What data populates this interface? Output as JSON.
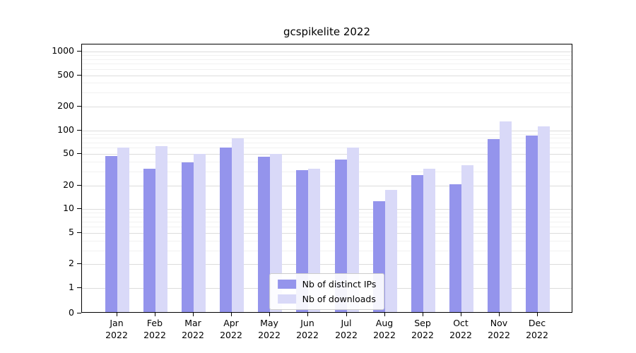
{
  "chart_data": {
    "type": "bar",
    "title": "gcspikelite 2022",
    "categories": [
      "Jan 2022",
      "Feb 2022",
      "Mar 2022",
      "Apr 2022",
      "May 2022",
      "Jun 2022",
      "Jul 2022",
      "Aug 2022",
      "Sep 2022",
      "Oct 2022",
      "Nov 2022",
      "Dec 2022"
    ],
    "series": [
      {
        "name": "Nb of distinct IPs",
        "color": "#9494ec",
        "values": [
          45,
          31,
          38,
          58,
          44,
          30,
          41,
          12,
          26,
          20,
          75,
          82
        ]
      },
      {
        "name": "Nb of downloads",
        "color": "#d9d9f8",
        "values": [
          58,
          60,
          48,
          76,
          48,
          31,
          58,
          17,
          31,
          35,
          125,
          107
        ]
      }
    ],
    "y_scale": "symlog",
    "y_ticks": [
      1000,
      500,
      200,
      100,
      50,
      20,
      10,
      5,
      2,
      1,
      0
    ],
    "y_minor_ticks": [
      3,
      4,
      6,
      7,
      8,
      9,
      30,
      40,
      60,
      70,
      80,
      90,
      300,
      400,
      600,
      700,
      800,
      900
    ],
    "ylim": [
      0,
      1200
    ],
    "grid": true,
    "legend_position": "lower center"
  }
}
